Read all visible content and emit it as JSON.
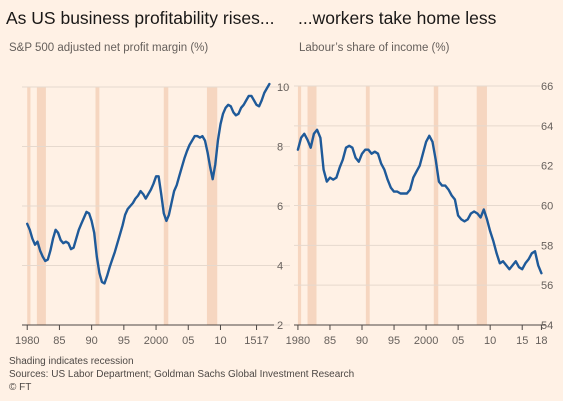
{
  "chart_data": [
    {
      "type": "line",
      "title": "As US business profitability rises...",
      "subtitle": "S&P 500 adjusted net profit margin (%)",
      "xlim": [
        1979.5,
        2018
      ],
      "ylim": [
        2,
        10
      ],
      "yticks": [
        2,
        4,
        6,
        8,
        10
      ],
      "ytick_side": "right",
      "xticks": [
        {
          "value": 1980,
          "label": "1980"
        },
        {
          "value": 1985,
          "label": "85"
        },
        {
          "value": 1990,
          "label": "90"
        },
        {
          "value": 1995,
          "label": "95"
        },
        {
          "value": 2000,
          "label": "2000"
        },
        {
          "value": 2005,
          "label": "05"
        },
        {
          "value": 2010,
          "label": "10"
        },
        {
          "value": 2015.6,
          "label": "1517"
        }
      ],
      "recessions": [
        [
          1980.0,
          1980.5
        ],
        [
          1981.5,
          1982.9
        ],
        [
          1990.6,
          1991.2
        ],
        [
          2001.2,
          2001.9
        ],
        [
          2007.9,
          2009.5
        ]
      ],
      "series": [
        {
          "color": "#1f5a99",
          "x": [
            1980,
            1980.4,
            1980.8,
            1981.2,
            1981.6,
            1982,
            1982.4,
            1982.8,
            1983.2,
            1983.6,
            1984,
            1984.4,
            1984.8,
            1985.2,
            1985.6,
            1986,
            1986.4,
            1986.8,
            1987.2,
            1987.6,
            1988,
            1988.4,
            1988.8,
            1989.2,
            1989.6,
            1990,
            1990.4,
            1990.8,
            1991.2,
            1991.6,
            1992,
            1992.4,
            1992.8,
            1993.2,
            1993.6,
            1994,
            1994.4,
            1994.8,
            1995.2,
            1995.6,
            1996,
            1996.4,
            1996.8,
            1997.2,
            1997.6,
            1998,
            1998.4,
            1998.8,
            1999.2,
            1999.6,
            2000,
            2000.4,
            2000.8,
            2001.2,
            2001.6,
            2002,
            2002.4,
            2002.8,
            2003.2,
            2003.6,
            2004,
            2004.4,
            2004.8,
            2005.2,
            2005.6,
            2006,
            2006.4,
            2006.8,
            2007.2,
            2007.6,
            2008,
            2008.4,
            2008.8,
            2009.2,
            2009.6,
            2010,
            2010.4,
            2010.8,
            2011.2,
            2011.6,
            2012,
            2012.4,
            2012.8,
            2013.2,
            2013.6,
            2014,
            2014.4,
            2014.8,
            2015.2,
            2015.6,
            2016,
            2016.4,
            2016.8,
            2017.2,
            2017.6
          ],
          "y": [
            5.4,
            5.2,
            4.9,
            4.7,
            4.8,
            4.5,
            4.3,
            4.15,
            4.2,
            4.5,
            4.9,
            5.2,
            5.1,
            4.85,
            4.75,
            4.8,
            4.75,
            4.55,
            4.6,
            4.9,
            5.2,
            5.4,
            5.6,
            5.8,
            5.75,
            5.5,
            5.1,
            4.3,
            3.75,
            3.45,
            3.4,
            3.65,
            3.95,
            4.2,
            4.45,
            4.75,
            5.05,
            5.35,
            5.7,
            5.9,
            6.0,
            6.1,
            6.25,
            6.35,
            6.5,
            6.4,
            6.25,
            6.4,
            6.55,
            6.75,
            7.0,
            7.0,
            6.4,
            5.75,
            5.5,
            5.7,
            6.1,
            6.5,
            6.7,
            7.0,
            7.3,
            7.6,
            7.85,
            8.05,
            8.2,
            8.35,
            8.35,
            8.3,
            8.35,
            8.2,
            7.8,
            7.3,
            6.9,
            7.4,
            8.2,
            8.75,
            9.1,
            9.3,
            9.4,
            9.35,
            9.15,
            9.05,
            9.1,
            9.3,
            9.4,
            9.55,
            9.7,
            9.7,
            9.55,
            9.4,
            9.35,
            9.55,
            9.8,
            9.95,
            10.1
          ]
        }
      ]
    },
    {
      "type": "line",
      "title": "...workers take home less",
      "subtitle": "Labour’s share of income (%)",
      "xlim": [
        1979.7,
        2018.4
      ],
      "ylim": [
        54,
        66
      ],
      "yticks": [
        54,
        56,
        58,
        60,
        62,
        64,
        66
      ],
      "ytick_side": "right",
      "xticks": [
        {
          "value": 1980,
          "label": "1980"
        },
        {
          "value": 1985,
          "label": "85"
        },
        {
          "value": 1990,
          "label": "90"
        },
        {
          "value": 1995,
          "label": "95"
        },
        {
          "value": 2000,
          "label": "2000"
        },
        {
          "value": 2005,
          "label": "05"
        },
        {
          "value": 2010,
          "label": "10"
        },
        {
          "value": 2015,
          "label": "15"
        },
        {
          "value": 2018,
          "label": "18"
        }
      ],
      "recessions": [
        [
          1980.0,
          1980.5
        ],
        [
          1981.5,
          1982.9
        ],
        [
          1990.6,
          1991.2
        ],
        [
          2001.2,
          2001.9
        ],
        [
          2007.9,
          2009.5
        ]
      ],
      "series": [
        {
          "color": "#1f5a99",
          "x": [
            1980,
            1980.5,
            1981,
            1981.5,
            1982,
            1982.5,
            1983,
            1983.5,
            1984,
            1984.5,
            1985,
            1985.5,
            1986,
            1986.5,
            1987,
            1987.5,
            1988,
            1988.5,
            1989,
            1989.5,
            1990,
            1990.5,
            1991,
            1991.5,
            1992,
            1992.5,
            1993,
            1993.5,
            1994,
            1994.5,
            1995,
            1995.5,
            1996,
            1996.5,
            1997,
            1997.5,
            1998,
            1998.5,
            1999,
            1999.5,
            2000,
            2000.5,
            2001,
            2001.5,
            2002,
            2002.5,
            2003,
            2003.5,
            2004,
            2004.5,
            2005,
            2005.5,
            2006,
            2006.5,
            2007,
            2007.5,
            2008,
            2008.5,
            2009,
            2009.5,
            2010,
            2010.5,
            2011,
            2011.5,
            2012,
            2012.5,
            2013,
            2013.5,
            2014,
            2014.5,
            2015,
            2015.5,
            2016,
            2016.5,
            2017,
            2017.5,
            2018
          ],
          "y": [
            62.8,
            63.4,
            63.6,
            63.3,
            62.9,
            63.6,
            63.8,
            63.4,
            61.8,
            61.2,
            61.4,
            61.3,
            61.4,
            61.9,
            62.3,
            62.9,
            63.0,
            62.9,
            62.4,
            62.2,
            62.6,
            62.8,
            62.8,
            62.6,
            62.7,
            62.6,
            62.1,
            61.8,
            61.3,
            60.9,
            60.7,
            60.7,
            60.6,
            60.6,
            60.6,
            60.8,
            61.4,
            61.7,
            62.0,
            62.6,
            63.2,
            63.5,
            63.2,
            62.3,
            61.2,
            61.0,
            61.0,
            60.8,
            60.5,
            60.3,
            59.5,
            59.3,
            59.2,
            59.3,
            59.6,
            59.7,
            59.6,
            59.4,
            59.8,
            59.3,
            58.7,
            58.2,
            57.6,
            57.1,
            57.2,
            57.0,
            56.8,
            57.0,
            57.2,
            56.9,
            56.8,
            57.1,
            57.3,
            57.6,
            57.7,
            57.0,
            56.6
          ]
        }
      ]
    }
  ],
  "footer": {
    "note": "Shading indicates recession",
    "sources": "Sources: US Labor Department; Goldman Sachs Global Investment Research",
    "credit": "© FT"
  },
  "colors": {
    "background": "#fff1e5",
    "line": "#1f5a99",
    "recession": "#f6d6c0",
    "grid": "#e6d9ce",
    "axis": "#66605c"
  }
}
